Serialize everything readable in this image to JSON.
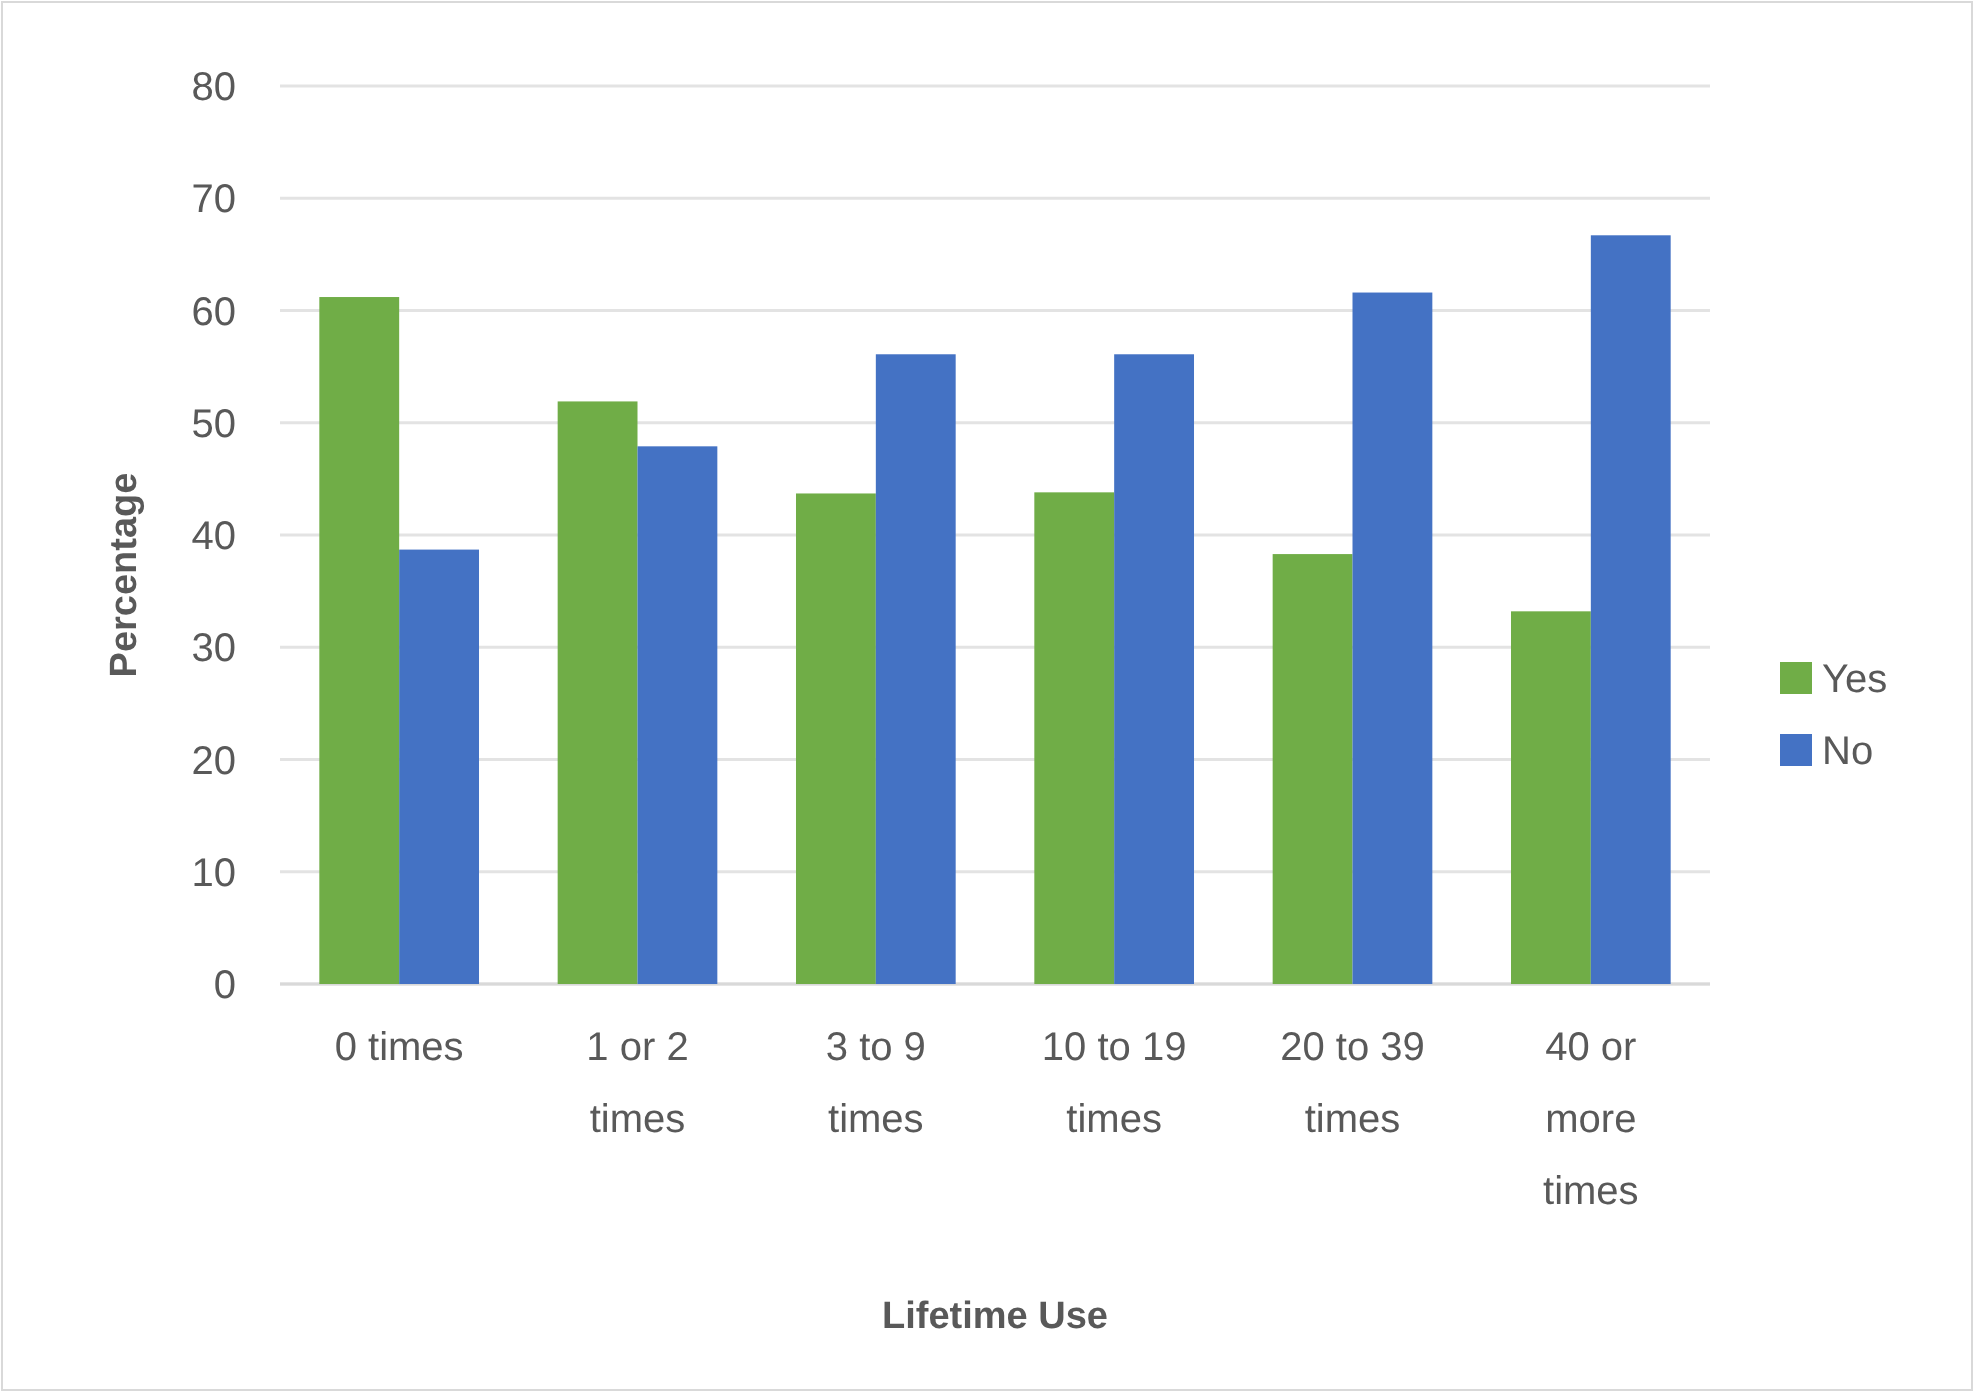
{
  "chart_data": {
    "type": "bar",
    "xlabel": "Lifetime Use",
    "ylabel": "Percentage",
    "categories": [
      "0 times",
      "1 or 2 times",
      "3 to 9 times",
      "10 to 19 times",
      "20 to 39 times",
      "40 or more times"
    ],
    "series": [
      {
        "name": "Yes",
        "color": "#70ad47",
        "values": [
          61.2,
          51.9,
          43.7,
          43.8,
          38.3,
          33.2
        ]
      },
      {
        "name": "No",
        "color": "#4472c4",
        "values": [
          38.7,
          47.9,
          56.1,
          56.1,
          61.6,
          66.7
        ]
      }
    ],
    "ylim": [
      0,
      80
    ],
    "yticks": [
      0,
      10,
      20,
      30,
      40,
      50,
      60,
      70,
      80
    ],
    "grid": "y",
    "legend": "right"
  }
}
